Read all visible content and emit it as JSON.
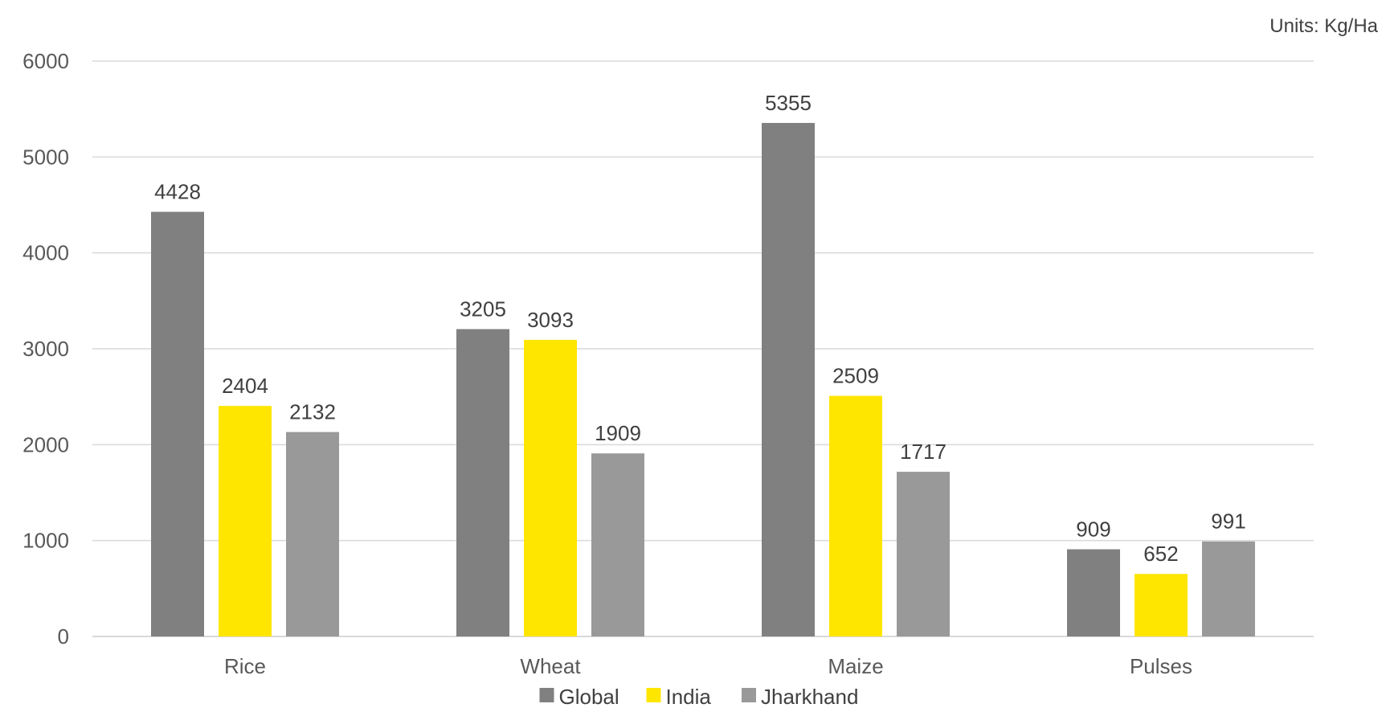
{
  "units_note": "Units: Kg/Ha",
  "chart_data": {
    "type": "bar",
    "categories": [
      "Rice",
      "Wheat",
      "Maize",
      "Pulses"
    ],
    "series": [
      {
        "name": "Global",
        "color": "#808080",
        "values": [
          4428,
          3205,
          5355,
          909
        ]
      },
      {
        "name": "India",
        "color": "#ffe600",
        "values": [
          2404,
          3093,
          2509,
          652
        ]
      },
      {
        "name": "Jharkhand",
        "color": "#999999",
        "values": [
          2132,
          1909,
          1717,
          991
        ]
      }
    ],
    "ylim": [
      0,
      6000
    ],
    "yticks": [
      0,
      1000,
      2000,
      3000,
      4000,
      5000,
      6000
    ],
    "grid": true,
    "legend": "bottom",
    "data_labels": true
  }
}
